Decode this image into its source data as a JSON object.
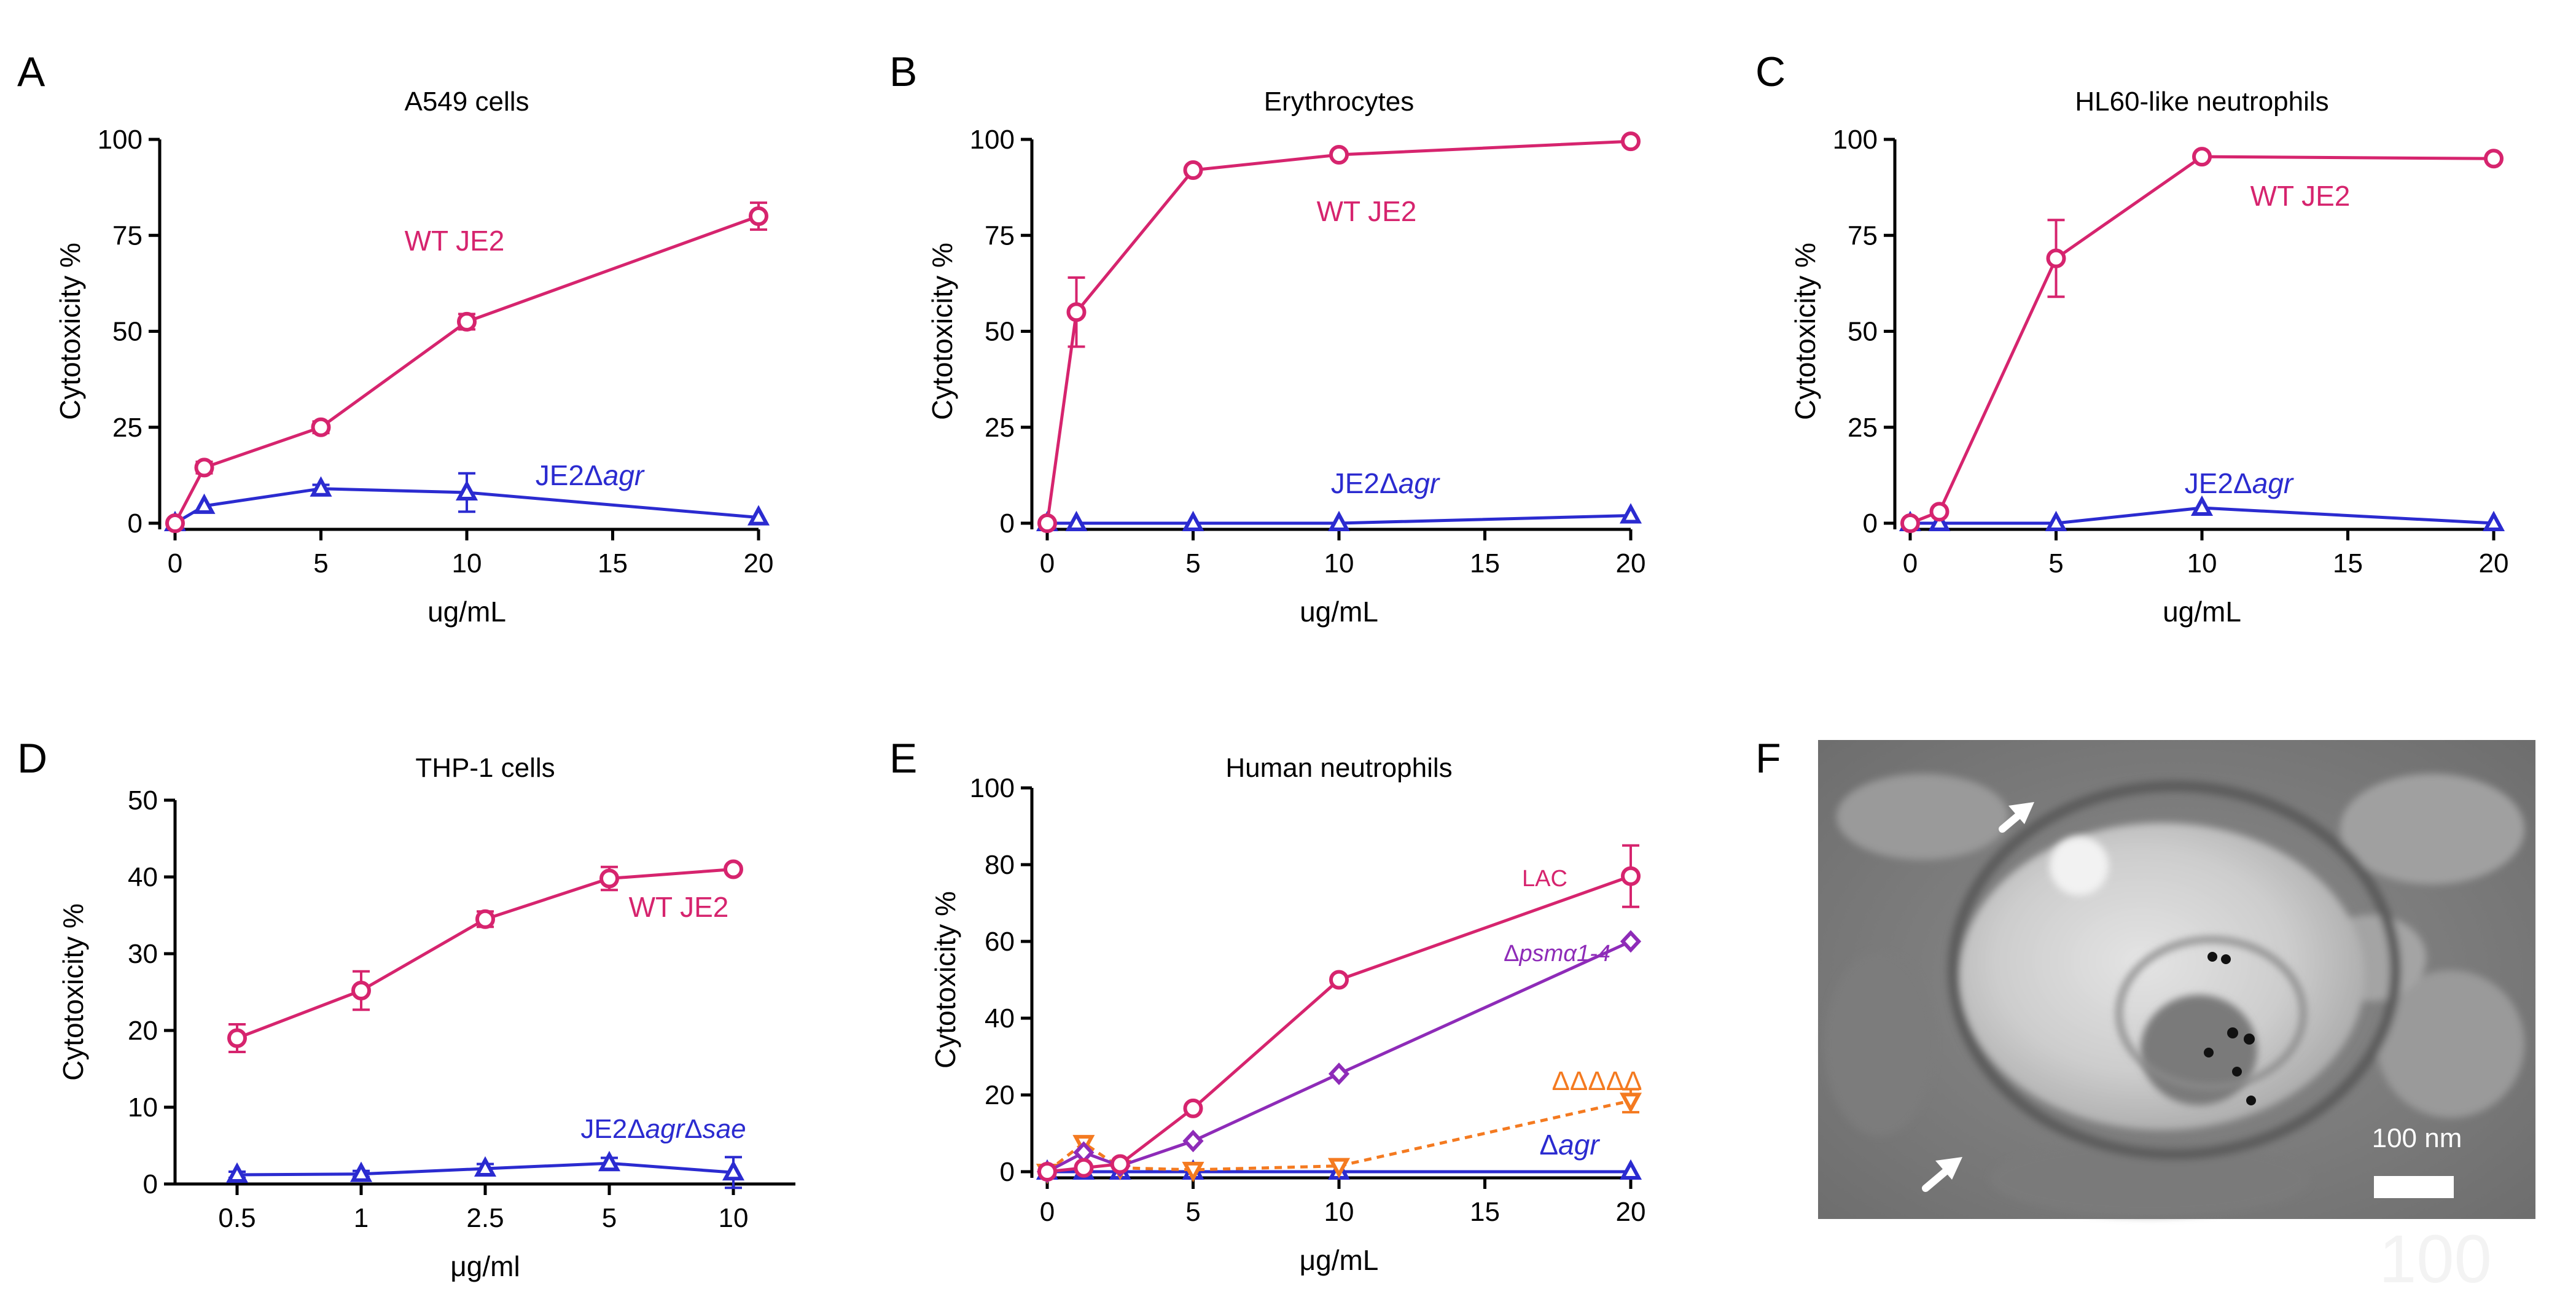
{
  "chart_data": [
    {
      "panel": "A",
      "type": "line",
      "title": "A549 cells",
      "xlabel": "ug/mL",
      "ylabel": "Cytotoxicity %",
      "xlim": [
        0,
        20
      ],
      "ylim": [
        0,
        100
      ],
      "xticks": [
        0,
        5,
        10,
        15,
        20
      ],
      "yticks": [
        0,
        25,
        50,
        75,
        100
      ],
      "series": [
        {
          "name": "WT JE2",
          "color": "#d6246e",
          "marker": "circle",
          "x": [
            0,
            1,
            5,
            10,
            20
          ],
          "y": [
            0,
            14.5,
            25,
            52.5,
            80
          ],
          "err": [
            0,
            1.5,
            1.5,
            2,
            3.5
          ],
          "label_parts": [
            {
              "t": "WT JE2",
              "i": false
            }
          ]
        },
        {
          "name": "JE2Δagr",
          "color": "#2b2bd0",
          "marker": "triangle",
          "x": [
            0,
            1,
            5,
            10,
            20
          ],
          "y": [
            0,
            4.5,
            9,
            8,
            1.5
          ],
          "err": [
            0,
            0,
            1,
            5,
            0
          ],
          "label_parts": [
            {
              "t": "JE2Δ",
              "i": false
            },
            {
              "t": "agr",
              "i": true
            }
          ]
        }
      ]
    },
    {
      "panel": "B",
      "type": "line",
      "title": "Erythrocytes",
      "xlabel": "ug/mL",
      "ylabel": "Cytotoxicity %",
      "xlim": [
        0,
        20
      ],
      "ylim": [
        0,
        100
      ],
      "xticks": [
        0,
        5,
        10,
        15,
        20
      ],
      "yticks": [
        0,
        25,
        50,
        75,
        100
      ],
      "series": [
        {
          "name": "WT JE2",
          "color": "#d6246e",
          "marker": "circle",
          "x": [
            0,
            1,
            5,
            10,
            20
          ],
          "y": [
            0,
            55,
            92,
            96,
            99.5
          ],
          "err": [
            0,
            9,
            0.5,
            0.5,
            0.5
          ],
          "label_parts": [
            {
              "t": "WT JE2",
              "i": false
            }
          ]
        },
        {
          "name": "JE2Δagr",
          "color": "#2b2bd0",
          "marker": "triangle",
          "x": [
            0,
            1,
            5,
            10,
            20
          ],
          "y": [
            0,
            0,
            0,
            0,
            2
          ],
          "err": [
            0,
            0,
            0,
            0,
            0
          ],
          "label_parts": [
            {
              "t": "JE2Δ",
              "i": false
            },
            {
              "t": "agr",
              "i": true
            }
          ]
        }
      ]
    },
    {
      "panel": "C",
      "type": "line",
      "title": "HL60-like neutrophils",
      "xlabel": "ug/mL",
      "ylabel": "Cytotoxicity %",
      "xlim": [
        0,
        20
      ],
      "ylim": [
        0,
        100
      ],
      "xticks": [
        0,
        5,
        10,
        15,
        20
      ],
      "yticks": [
        0,
        25,
        50,
        75,
        100
      ],
      "series": [
        {
          "name": "WT JE2",
          "color": "#d6246e",
          "marker": "circle",
          "x": [
            0,
            1,
            5,
            10,
            20
          ],
          "y": [
            0,
            3,
            69,
            95.5,
            95
          ],
          "err": [
            0,
            0,
            10,
            0.5,
            0.5
          ],
          "label_parts": [
            {
              "t": "WT JE2",
              "i": false
            }
          ]
        },
        {
          "name": "JE2Δagr",
          "color": "#2b2bd0",
          "marker": "triangle",
          "x": [
            0,
            1,
            5,
            10,
            20
          ],
          "y": [
            0,
            0,
            0,
            4,
            0
          ],
          "err": [
            0,
            0,
            0,
            0,
            0
          ],
          "label_parts": [
            {
              "t": "JE2Δ",
              "i": false
            },
            {
              "t": "agr",
              "i": true
            }
          ]
        }
      ]
    },
    {
      "panel": "D",
      "type": "line",
      "title": "THP-1 cells",
      "xlabel": "μg/ml",
      "ylabel": "Cytotoxicity %",
      "categories": [
        "0.5",
        "1",
        "2.5",
        "5",
        "10"
      ],
      "ylim": [
        0,
        50
      ],
      "yticks": [
        0,
        10,
        20,
        30,
        40,
        50
      ],
      "series": [
        {
          "name": "WT JE2",
          "color": "#d6246e",
          "marker": "circle",
          "y": [
            19,
            25.2,
            34.5,
            39.8,
            41
          ],
          "err": [
            1.8,
            2.5,
            1,
            1.5,
            0.3
          ],
          "label_parts": [
            {
              "t": "WT JE2",
              "i": false
            }
          ]
        },
        {
          "name": "JE2ΔagrΔsae",
          "color": "#2b2bd0",
          "marker": "triangle",
          "y": [
            1.2,
            1.3,
            2,
            2.7,
            1.5
          ],
          "err": [
            0.4,
            0.4,
            0.6,
            0.7,
            2
          ],
          "label_parts": [
            {
              "t": "JE2Δ",
              "i": false
            },
            {
              "t": "agr",
              "i": true
            },
            {
              "t": "Δ",
              "i": false
            },
            {
              "t": "sae",
              "i": true
            }
          ]
        }
      ]
    },
    {
      "panel": "E",
      "type": "line",
      "title": "Human neutrophils",
      "xlabel": "μg/mL",
      "ylabel": "Cytotoxicity %",
      "xlim": [
        0,
        20
      ],
      "ylim": [
        0,
        100
      ],
      "xticks": [
        0,
        5,
        10,
        15,
        20
      ],
      "yticks": [
        0,
        20,
        40,
        60,
        80,
        100
      ],
      "series": [
        {
          "name": "LAC",
          "color": "#d6246e",
          "marker": "circle",
          "x": [
            0,
            1.25,
            2.5,
            5,
            10,
            20
          ],
          "y": [
            0,
            1,
            2,
            16.5,
            50,
            77
          ],
          "err": [
            0,
            0,
            0,
            0,
            0,
            8
          ],
          "label_parts": [
            {
              "t": "LAC",
              "i": false
            }
          ]
        },
        {
          "name": "Δpsmα1-4",
          "color": "#8e2bb8",
          "marker": "diamond",
          "x": [
            0,
            1.25,
            2.5,
            5,
            10,
            20
          ],
          "y": [
            0,
            5,
            1.5,
            8,
            25.5,
            60
          ],
          "err": [
            0,
            0,
            0,
            0,
            0,
            0
          ],
          "label_parts": [
            {
              "t": "Δ",
              "i": false
            },
            {
              "t": "psmα1-4",
              "i": true
            }
          ]
        },
        {
          "name": "ΔΔΔΔΔ",
          "color": "#f47a20",
          "marker": "triangle-down",
          "dashed": true,
          "x": [
            0,
            1.25,
            2.5,
            5,
            10,
            20
          ],
          "y": [
            0,
            7.5,
            1,
            0.5,
            1.5,
            18.5
          ],
          "err": [
            0,
            0,
            0,
            0,
            0,
            3
          ],
          "label_parts": [
            {
              "t": "ΔΔΔΔΔ",
              "i": false
            }
          ]
        },
        {
          "name": "Δagr",
          "color": "#2b2bd0",
          "marker": "triangle",
          "x": [
            0,
            1.25,
            2.5,
            5,
            10,
            20
          ],
          "y": [
            0,
            0,
            0,
            0,
            0,
            0
          ],
          "err": [
            0,
            0,
            0,
            0,
            0,
            0
          ],
          "label_parts": [
            {
              "t": "Δ",
              "i": false
            },
            {
              "t": "agr",
              "i": true
            }
          ]
        }
      ]
    }
  ],
  "panel_f": {
    "letter": "F",
    "type": "micrograph",
    "scale_bar_label": "100 nm",
    "watermark": "100"
  }
}
